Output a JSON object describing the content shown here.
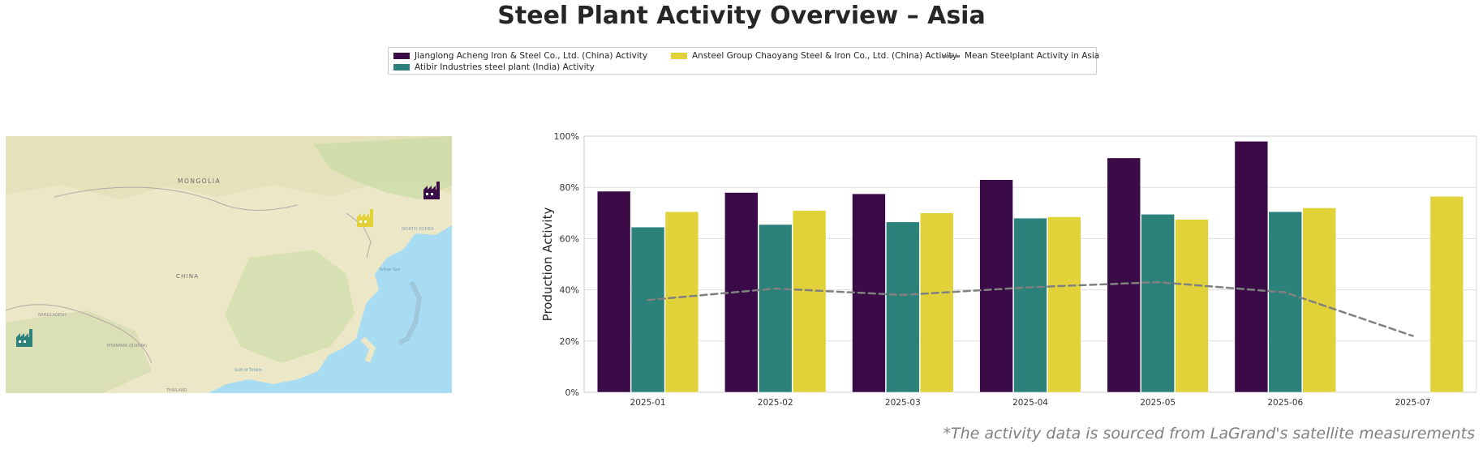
{
  "title": "Steel Plant Activity Overview – Asia",
  "footnote": "*The activity data is sourced from LaGrand's satellite measurements",
  "legend": {
    "items": [
      {
        "label": "Jianglong Acheng Iron & Steel Co., Ltd. (China) Activity",
        "color": "#3b0b47",
        "kind": "bar"
      },
      {
        "label": "Atibir Industries steel plant (India) Activity",
        "color": "#2c827a",
        "kind": "bar"
      },
      {
        "label": "Ansteel Group Chaoyang Steel & Iron Co., Ltd. (China) Activity",
        "color": "#e1d23a",
        "kind": "bar"
      },
      {
        "label": "Mean Steelplant Activity in Asia",
        "color": "#808080",
        "kind": "dashed-line"
      }
    ]
  },
  "map": {
    "labels": {
      "mongolia": "MONGOLIA",
      "china": "CHINA",
      "north_korea": "NORTH KOREA",
      "myanmar": "MYANMAR (BURMA)",
      "thailand": "THAILAND",
      "yellow_sea": "Yellow Sea",
      "gulf_tonkin": "Gulf of Tonkin",
      "bangladesh": "BANGLADESH"
    },
    "colors": {
      "land": "#ece7c6",
      "water": "#a8dcf2",
      "green": "#c9dca6",
      "border": "#b8a6a6"
    }
  },
  "chart_data": {
    "type": "bar",
    "categories": [
      "2025-01",
      "2025-02",
      "2025-03",
      "2025-04",
      "2025-05",
      "2025-06",
      "2025-07"
    ],
    "series": [
      {
        "name": "Jianglong Acheng Iron & Steel Co., Ltd. (China) Activity",
        "color": "#3b0b47",
        "values": [
          78.5,
          78,
          77.5,
          83,
          91.5,
          98,
          null
        ]
      },
      {
        "name": "Atibir Industries steel plant (India) Activity",
        "color": "#2c827a",
        "values": [
          64.5,
          65.5,
          66.5,
          68,
          69.5,
          70.5,
          null
        ]
      },
      {
        "name": "Ansteel Group Chaoyang Steel & Iron Co., Ltd. (China) Activity",
        "color": "#e1d23a",
        "values": [
          70.5,
          71,
          70,
          68.5,
          67.5,
          72,
          76.5
        ]
      }
    ],
    "line": {
      "name": "Mean Steelplant Activity in Asia",
      "color": "#808080",
      "style": "dashed",
      "values": [
        36,
        40.5,
        38,
        41,
        43,
        39,
        22
      ]
    },
    "ylabel": "Production Activity",
    "ylim": [
      0,
      100
    ],
    "yticks": [
      "0%",
      "20%",
      "40%",
      "60%",
      "80%",
      "100%"
    ],
    "grid": true
  }
}
